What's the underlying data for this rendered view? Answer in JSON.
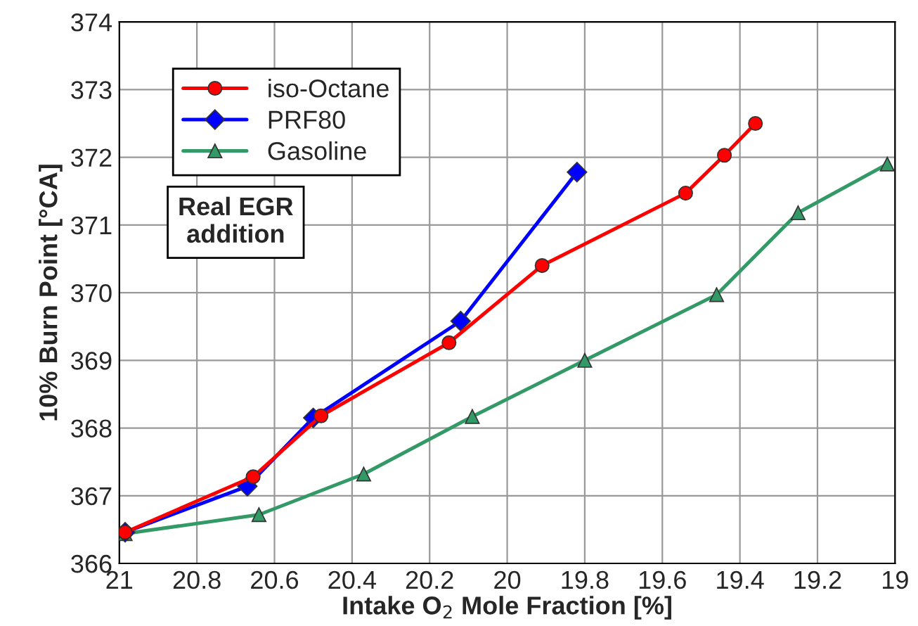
{
  "chart_data": {
    "type": "line",
    "xlabel": "Intake O$_{2}$ Mole Fraction [%]",
    "ylabel": "10% Burn Point [°CA]",
    "xlim": [
      21,
      19
    ],
    "xticks": [
      21,
      20.8,
      20.6,
      20.4,
      20.2,
      20,
      19.8,
      19.6,
      19.4,
      19.2,
      19
    ],
    "ylim": [
      366,
      374
    ],
    "yticks": [
      366,
      367,
      368,
      369,
      370,
      371,
      372,
      373,
      374
    ],
    "grid": true,
    "legend": "top left",
    "line_style": "solid",
    "annotations": [
      "Real EGR\naddition"
    ],
    "series": [
      {
        "name": "iso-Octane",
        "color": "#ff0000",
        "marker": "circle",
        "x": [
          20.985,
          20.655,
          20.48,
          20.15,
          19.91,
          19.54,
          19.44,
          19.36
        ],
        "values": [
          366.46,
          367.28,
          368.18,
          369.26,
          370.4,
          371.47,
          372.03,
          372.5
        ]
      },
      {
        "name": "PRF80",
        "color": "#0000ff",
        "marker": "diamond",
        "x": [
          20.985,
          20.67,
          20.5,
          20.12,
          19.82
        ],
        "values": [
          366.46,
          367.14,
          368.15,
          369.58,
          371.78
        ]
      },
      {
        "name": "Gasoline",
        "color": "#339966",
        "marker": "triangle",
        "x": [
          20.985,
          20.64,
          20.37,
          20.09,
          19.8,
          19.46,
          19.25,
          19.02
        ],
        "values": [
          366.44,
          366.72,
          367.32,
          368.17,
          369.0,
          369.97,
          371.18,
          371.9
        ]
      }
    ]
  }
}
